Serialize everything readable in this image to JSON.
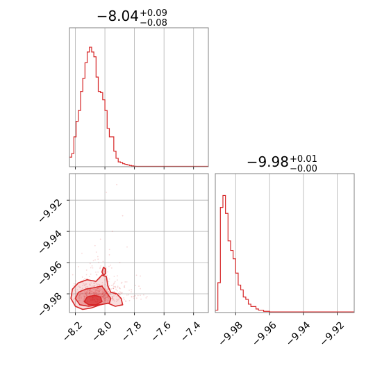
{
  "chart_data": [
    {
      "panel": "marginal-param-1",
      "type": "histogram",
      "title": {
        "value": "−8.04",
        "upper": "+0.09",
        "lower": "−0.08"
      },
      "xlim": [
        -8.24,
        -7.3
      ],
      "x_ticks": [
        -8.2,
        -8.0,
        -7.8,
        -7.6,
        -7.4
      ],
      "grid": true,
      "color": "#d62728",
      "bins": [
        [
          -8.24,
          -8.225,
          0.08
        ],
        [
          -8.225,
          -8.21,
          0.11
        ],
        [
          -8.21,
          -8.195,
          0.25
        ],
        [
          -8.195,
          -8.18,
          0.38
        ],
        [
          -8.18,
          -8.165,
          0.47
        ],
        [
          -8.165,
          -8.15,
          0.63
        ],
        [
          -8.15,
          -8.135,
          0.74
        ],
        [
          -8.135,
          -8.12,
          0.87
        ],
        [
          -8.12,
          -8.105,
          0.96
        ],
        [
          -8.105,
          -8.09,
          1.0
        ],
        [
          -8.09,
          -8.075,
          0.96
        ],
        [
          -8.075,
          -8.06,
          0.92
        ],
        [
          -8.06,
          -8.045,
          0.75
        ],
        [
          -8.045,
          -8.03,
          0.63
        ],
        [
          -8.03,
          -8.015,
          0.62
        ],
        [
          -8.015,
          -8.0,
          0.56
        ],
        [
          -8.0,
          -7.985,
          0.47
        ],
        [
          -7.985,
          -7.97,
          0.32
        ],
        [
          -7.97,
          -7.955,
          0.25
        ],
        [
          -7.955,
          -7.94,
          0.25
        ],
        [
          -7.94,
          -7.925,
          0.13
        ],
        [
          -7.925,
          -7.91,
          0.07
        ],
        [
          -7.91,
          -7.895,
          0.04
        ],
        [
          -7.895,
          -7.88,
          0.035
        ],
        [
          -7.88,
          -7.865,
          0.025
        ],
        [
          -7.865,
          -7.85,
          0.02
        ],
        [
          -7.85,
          -7.835,
          0.015
        ],
        [
          -7.835,
          -7.82,
          0.01
        ],
        [
          -7.82,
          -7.805,
          0.007
        ],
        [
          -7.805,
          -7.79,
          0.004
        ],
        [
          -7.79,
          -7.3,
          0.003
        ]
      ]
    },
    {
      "panel": "marginal-param-2",
      "type": "histogram",
      "title": {
        "value": "−9.98",
        "upper": "+0.01",
        "lower": "−0.00"
      },
      "xlim": [
        -9.992,
        -9.91
      ],
      "x_ticks": [
        -9.98,
        -9.96,
        -9.94,
        -9.92
      ],
      "grid": true,
      "color": "#d62728",
      "bins": [
        [
          -9.992,
          -9.9905,
          0.02
        ],
        [
          -9.9905,
          -9.989,
          0.25
        ],
        [
          -9.989,
          -9.9875,
          0.88
        ],
        [
          -9.9875,
          -9.986,
          0.98
        ],
        [
          -9.986,
          -9.9845,
          0.83
        ],
        [
          -9.9845,
          -9.983,
          0.6
        ],
        [
          -9.983,
          -9.9815,
          0.52
        ],
        [
          -9.9815,
          -9.98,
          0.45
        ],
        [
          -9.98,
          -9.9785,
          0.33
        ],
        [
          -9.9785,
          -9.977,
          0.23
        ],
        [
          -9.977,
          -9.9755,
          0.19
        ],
        [
          -9.9755,
          -9.974,
          0.13
        ],
        [
          -9.974,
          -9.9725,
          0.11
        ],
        [
          -9.9725,
          -9.971,
          0.07
        ],
        [
          -9.971,
          -9.9695,
          0.05
        ],
        [
          -9.9695,
          -9.968,
          0.05
        ],
        [
          -9.968,
          -9.9665,
          0.03
        ],
        [
          -9.9665,
          -9.965,
          0.02
        ],
        [
          -9.965,
          -9.9635,
          0.02
        ],
        [
          -9.9635,
          -9.962,
          0.01
        ],
        [
          -9.962,
          -9.96,
          0.01
        ],
        [
          -9.96,
          -9.91,
          0.005
        ]
      ]
    },
    {
      "panel": "joint-param-1-vs-param-2",
      "type": "scatter",
      "xlim": [
        -8.24,
        -7.3
      ],
      "ylim": [
        -9.992,
        -9.903
      ],
      "x_ticks": [
        -8.2,
        -8.0,
        -7.8,
        -7.6,
        -7.4
      ],
      "y_ticks": [
        -9.92,
        -9.94,
        -9.96,
        -9.98
      ],
      "grid": true,
      "color": "#d62728",
      "contours": [
        {
          "level": "outer",
          "points": [
            [
              -8.23,
              -9.983
            ],
            [
              -8.22,
              -9.977
            ],
            [
              -8.18,
              -9.973
            ],
            [
              -8.12,
              -9.971
            ],
            [
              -8.06,
              -9.972
            ],
            [
              -8.02,
              -9.968
            ],
            [
              -7.99,
              -9.969
            ],
            [
              -7.98,
              -9.975
            ],
            [
              -7.96,
              -9.979
            ],
            [
              -7.92,
              -9.98
            ],
            [
              -7.89,
              -9.983
            ],
            [
              -7.88,
              -9.987
            ],
            [
              -7.93,
              -9.988
            ],
            [
              -7.98,
              -9.986
            ],
            [
              -8.03,
              -9.987
            ],
            [
              -8.09,
              -9.989
            ],
            [
              -8.15,
              -9.99
            ],
            [
              -8.2,
              -9.988
            ]
          ]
        },
        {
          "level": "middle",
          "points": [
            [
              -8.2,
              -9.983
            ],
            [
              -8.18,
              -9.979
            ],
            [
              -8.13,
              -9.977
            ],
            [
              -8.07,
              -9.976
            ],
            [
              -8.02,
              -9.975
            ],
            [
              -7.99,
              -9.979
            ],
            [
              -7.96,
              -9.983
            ],
            [
              -7.97,
              -9.986
            ],
            [
              -8.04,
              -9.987
            ],
            [
              -8.11,
              -9.988
            ],
            [
              -8.17,
              -9.987
            ]
          ]
        },
        {
          "level": "inner",
          "points": [
            [
              -8.14,
              -9.985
            ],
            [
              -8.12,
              -9.982
            ],
            [
              -8.07,
              -9.981
            ],
            [
              -8.03,
              -9.982
            ],
            [
              -8.02,
              -9.985
            ],
            [
              -8.06,
              -9.987
            ],
            [
              -8.11,
              -9.987
            ]
          ]
        },
        {
          "level": "island",
          "points": [
            [
              -8.02,
              -9.966
            ],
            [
              -8.01,
              -9.963
            ],
            [
              -7.995,
              -9.964
            ],
            [
              -7.995,
              -9.967
            ],
            [
              -8.01,
              -9.968
            ]
          ]
        }
      ]
    }
  ]
}
